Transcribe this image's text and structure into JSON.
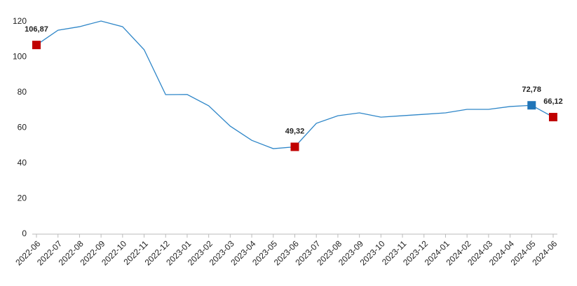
{
  "chart_data": {
    "type": "line",
    "categories": [
      "2022-06",
      "2022-07",
      "2022-08",
      "2022-09",
      "2022-10",
      "2022-11",
      "2022-12",
      "2023-01",
      "2023-02",
      "2023-03",
      "2023-04",
      "2023-05",
      "2023-06",
      "2023-07",
      "2023-08",
      "2023-09",
      "2023-10",
      "2023-11",
      "2023-12",
      "2024-01",
      "2024-02",
      "2024-03",
      "2024-04",
      "2024-05",
      "2024-06"
    ],
    "series": [
      {
        "color": "#2e86c8",
        "values": [
          106.87,
          115.2,
          117.2,
          120.4,
          117.2,
          104.2,
          78.8,
          78.9,
          72.5,
          61,
          53,
          48.3,
          49.32,
          62.6,
          66.9,
          68.5,
          66.1,
          66.9,
          67.7,
          68.5,
          70.5,
          70.5,
          72.1,
          72.78,
          66.12
        ],
        "value_labels": [
          "106,87",
          null,
          null,
          null,
          null,
          null,
          null,
          null,
          null,
          null,
          null,
          null,
          "49,32",
          null,
          null,
          null,
          null,
          null,
          null,
          null,
          null,
          null,
          null,
          "72,78",
          "66,12"
        ],
        "marker_colors": [
          "#c00000",
          null,
          null,
          null,
          null,
          null,
          null,
          null,
          null,
          null,
          null,
          null,
          "#c00000",
          null,
          null,
          null,
          null,
          null,
          null,
          null,
          null,
          null,
          null,
          "#2075b8",
          "#c00000"
        ]
      }
    ],
    "ylim": [
      0,
      120
    ],
    "yticks": [
      0,
      20,
      40,
      60,
      80,
      100,
      120
    ],
    "grid": false
  }
}
